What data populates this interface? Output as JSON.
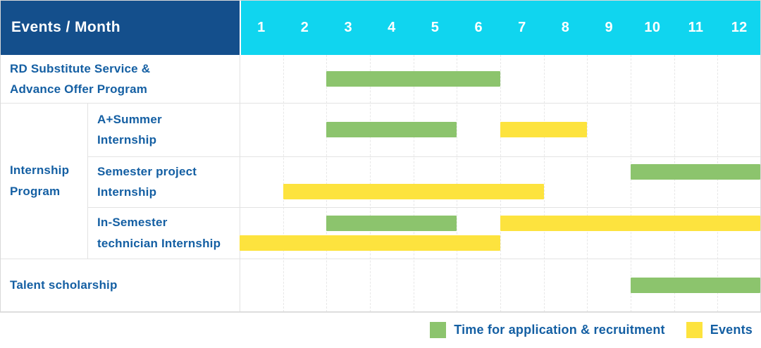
{
  "header": {
    "title": "Events / Month"
  },
  "colors": {
    "header_bg": "#144F8C",
    "months_bg": "#10D5EF",
    "header_text": "#FFFFFF",
    "label_text": "#145FA3",
    "application_green": "#8CC46D",
    "events_yellow": "#FDE33E",
    "grid_dash": "#E7E7E7",
    "row_border": "#E3E3E3",
    "outer_border": "#D9D9D9"
  },
  "chart_data": {
    "type": "bar",
    "subtype": "gantt-schedule",
    "title": "Events / Month",
    "xlabel": "Month",
    "ylabel": "Events",
    "grid": "dashed vertical month separators",
    "legend_position": "bottom-right",
    "x_axis": {
      "ticks": [
        "1",
        "2",
        "3",
        "4",
        "5",
        "6",
        "7",
        "8",
        "9",
        "10",
        "11",
        "12"
      ],
      "range": [
        1,
        12
      ]
    },
    "legend": [
      {
        "series": "application",
        "label": "Time for application & recruitment",
        "color": "#8CC46D"
      },
      {
        "series": "events",
        "label": "Events",
        "color": "#FDE33E"
      }
    ],
    "rows": [
      {
        "group": "",
        "label": "RD Substitute Service & Advance Offer Program",
        "lines": [
          "RD Substitute Service &",
          "Advance Offer Program"
        ],
        "lanes": [
          [
            {
              "series": "application",
              "start_month": 3,
              "end_month": 6
            }
          ]
        ]
      },
      {
        "group": "Internship Program",
        "label": "A+Summer Internship",
        "lines": [
          "A+Summer",
          "Internship"
        ],
        "lanes": [
          [
            {
              "series": "application",
              "start_month": 3,
              "end_month": 5
            },
            {
              "series": "events",
              "start_month": 7,
              "end_month": 8
            }
          ]
        ]
      },
      {
        "group": "Internship Program",
        "label": "Semester project Internship",
        "lines": [
          "Semester project",
          "Internship"
        ],
        "lanes": [
          [
            {
              "series": "application",
              "start_month": 10,
              "end_month": 12
            }
          ],
          [
            {
              "series": "events",
              "start_month": 2,
              "end_month": 7
            }
          ]
        ]
      },
      {
        "group": "Internship Program",
        "label": "In-Semester technician Internship",
        "lines": [
          "In-Semester",
          "technician Internship"
        ],
        "lanes": [
          [
            {
              "series": "application",
              "start_month": 3,
              "end_month": 5
            },
            {
              "series": "events",
              "start_month": 7,
              "end_month": 12
            }
          ],
          [
            {
              "series": "events",
              "start_month": 1,
              "end_month": 6
            }
          ]
        ]
      },
      {
        "group": "",
        "label": "Talent scholarship",
        "lines": [
          "Talent scholarship"
        ],
        "lanes": [
          [
            {
              "series": "application",
              "start_month": 10,
              "end_month": 12
            }
          ]
        ]
      }
    ],
    "group_lines": {
      "Internship Program": [
        "Internship",
        "Program"
      ]
    }
  }
}
